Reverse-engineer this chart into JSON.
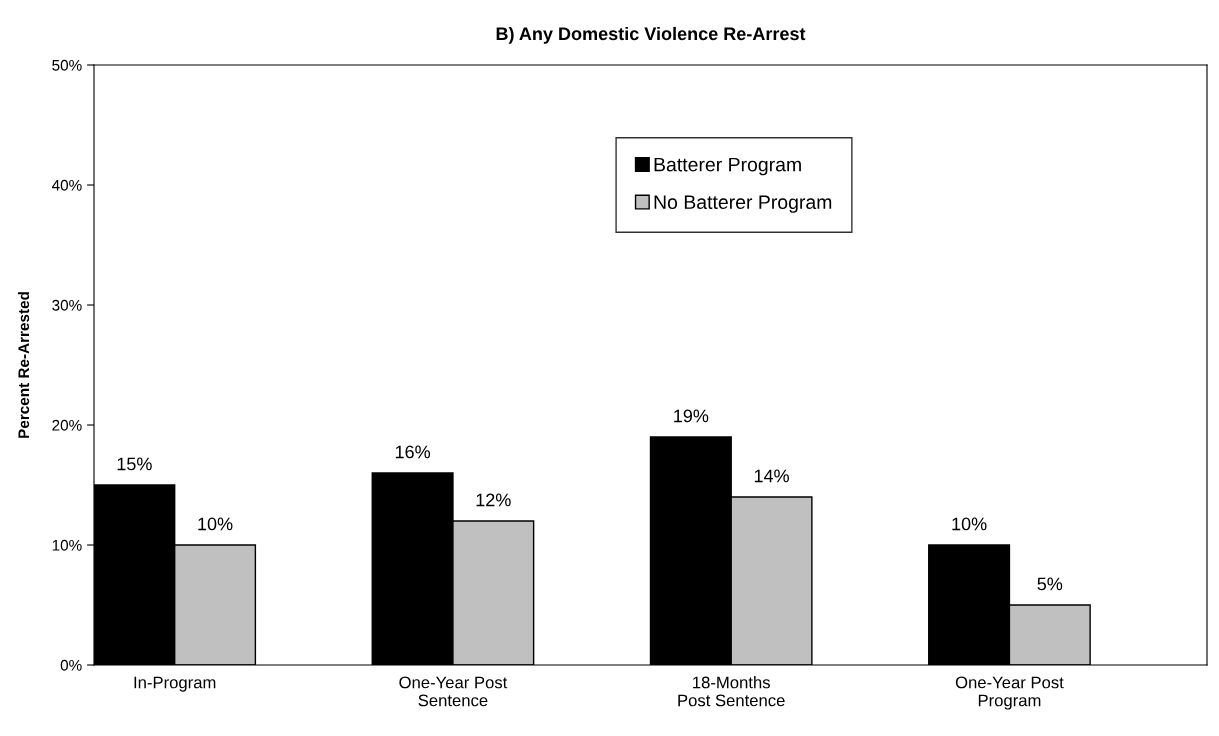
{
  "chart_data": {
    "type": "bar",
    "title": "B) Any Domestic Violence Re-Arrest",
    "ylabel": "Percent Re-Arrested",
    "categories": [
      "In-Program",
      "One-Year Post\nSentence",
      "18-Months\nPost Sentence",
      "One-Year Post\nProgram"
    ],
    "series": [
      {
        "name": "Batterer Program",
        "color": "#000000",
        "values": [
          15,
          16,
          19,
          10
        ],
        "value_labels": [
          "15%",
          "16%",
          "19%",
          "10%"
        ]
      },
      {
        "name": "No Batterer Program",
        "color": "#c0c0c0",
        "values": [
          10,
          12,
          14,
          5
        ],
        "value_labels": [
          "10%",
          "12%",
          "14%",
          "5%"
        ]
      }
    ],
    "ylim": [
      0,
      50
    ],
    "yticks": [
      {
        "value": 0,
        "label": "0%"
      },
      {
        "value": 10,
        "label": "10%"
      },
      {
        "value": 20,
        "label": "20%"
      },
      {
        "value": 30,
        "label": "30%"
      },
      {
        "value": 40,
        "label": "40%"
      },
      {
        "value": 50,
        "label": "50%"
      }
    ],
    "grid": false,
    "legend": "top center"
  }
}
